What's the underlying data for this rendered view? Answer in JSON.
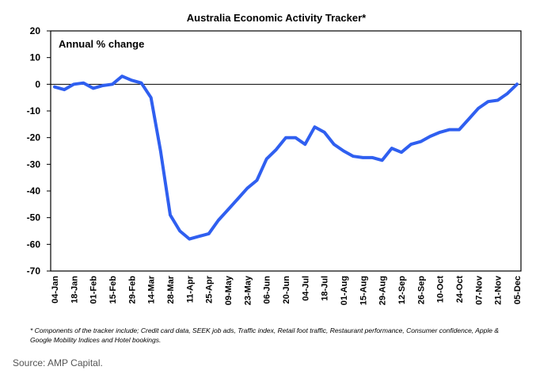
{
  "chart_data": {
    "type": "line",
    "title": "Australia Economic Activity Tracker*",
    "inner_label": "Annual % change",
    "ylabel": "",
    "xlabel": "",
    "ylim": [
      -70,
      20
    ],
    "yticks": [
      20,
      10,
      0,
      -10,
      -20,
      -30,
      -40,
      -50,
      -60,
      -70
    ],
    "x_tick_labels": [
      "04-Jan",
      "18-Jan",
      "01-Feb",
      "15-Feb",
      "29-Feb",
      "14-Mar",
      "28-Mar",
      "11-Apr",
      "25-Apr",
      "09-May",
      "23-May",
      "06-Jun",
      "20-Jun",
      "04-Jul",
      "18-Jul",
      "01-Aug",
      "15-Aug",
      "29-Aug",
      "12-Sep",
      "26-Sep",
      "10-Oct",
      "24-Oct",
      "07-Nov",
      "21-Nov",
      "05-Dec"
    ],
    "line_color": "#2f5ff0",
    "series": [
      {
        "values": [
          -1,
          -2,
          0,
          0.5,
          -1.5,
          -0.5,
          0,
          3,
          1.5,
          0.5,
          -5,
          -25,
          -49,
          -55,
          -58,
          -57,
          -56,
          -51,
          -47,
          -43,
          -39,
          -36,
          -28,
          -24.5,
          -20,
          -20,
          -22.5,
          -16,
          -18,
          -22.5,
          -25,
          -27,
          -27.5,
          -27.5,
          -28.5,
          -24,
          -25.5,
          -22.5,
          -21.5,
          -19.5,
          -18,
          -17,
          -17,
          -13,
          -9,
          -6.5,
          -6,
          -3.5,
          0
        ]
      }
    ]
  },
  "footnote": "* Components of the tracker include; Credit card data, SEEK job ads, Traffic index, Retail foot traffic, Restaurant performance, Consumer confidence, Apple & Google Mobility Indices and Hotel bookings.",
  "source": "Source: AMP Capital."
}
